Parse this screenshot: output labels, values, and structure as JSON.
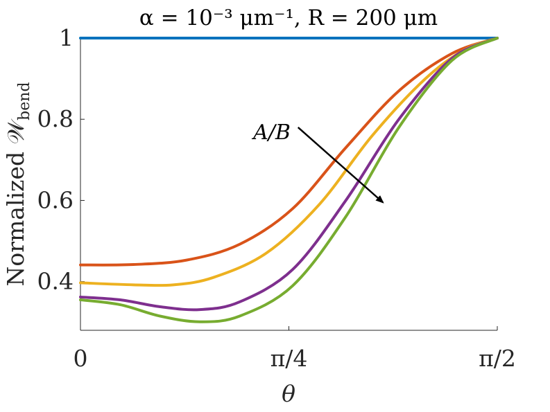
{
  "chart_data": {
    "type": "line",
    "title": "α = 10⁻³ μm⁻¹,   R = 200 μm",
    "xlabel": "θ",
    "ylabel": "Normalized 𝒲bend",
    "ylabel_main": "Normalized 𝒲",
    "ylabel_sub": "bend",
    "xlim": [
      0,
      1.5708
    ],
    "ylim": [
      0.28,
      1.0
    ],
    "xticks": [
      {
        "value": 0,
        "label": "0"
      },
      {
        "value": 0.7854,
        "label": "π/4"
      },
      {
        "value": 1.5708,
        "label": "π/2"
      }
    ],
    "yticks": [
      {
        "value": 0.4,
        "label": "0.4"
      },
      {
        "value": 0.6,
        "label": "0.6"
      },
      {
        "value": 0.8,
        "label": "0.8"
      },
      {
        "value": 1.0,
        "label": "1"
      }
    ],
    "grid": false,
    "legend": "none",
    "series": [
      {
        "color": "#0072BD",
        "points": [
          [
            0,
            1.0
          ],
          [
            1.5708,
            1.0
          ]
        ]
      },
      {
        "color": "#D95319",
        "points": [
          [
            0,
            0.441
          ],
          [
            0.2,
            0.442
          ],
          [
            0.4,
            0.453
          ],
          [
            0.6,
            0.492
          ],
          [
            0.8,
            0.58
          ],
          [
            1.0,
            0.73
          ],
          [
            1.2,
            0.87
          ],
          [
            1.4,
            0.962
          ],
          [
            1.5708,
            1.0
          ]
        ]
      },
      {
        "color": "#EDB120",
        "points": [
          [
            0,
            0.397
          ],
          [
            0.2,
            0.392
          ],
          [
            0.35,
            0.392
          ],
          [
            0.5,
            0.41
          ],
          [
            0.7,
            0.47
          ],
          [
            0.9,
            0.59
          ],
          [
            1.1,
            0.76
          ],
          [
            1.3,
            0.9
          ],
          [
            1.45,
            0.972
          ],
          [
            1.5708,
            1.0
          ]
        ]
      },
      {
        "color": "#7E2F8E",
        "points": [
          [
            0,
            0.362
          ],
          [
            0.15,
            0.355
          ],
          [
            0.3,
            0.338
          ],
          [
            0.45,
            0.331
          ],
          [
            0.6,
            0.35
          ],
          [
            0.8,
            0.43
          ],
          [
            1.0,
            0.6
          ],
          [
            1.2,
            0.8
          ],
          [
            1.4,
            0.95
          ],
          [
            1.5708,
            1.0
          ]
        ]
      },
      {
        "color": "#77AC30",
        "points": [
          [
            0,
            0.355
          ],
          [
            0.15,
            0.343
          ],
          [
            0.3,
            0.315
          ],
          [
            0.45,
            0.301
          ],
          [
            0.6,
            0.315
          ],
          [
            0.8,
            0.39
          ],
          [
            1.0,
            0.56
          ],
          [
            1.2,
            0.78
          ],
          [
            1.4,
            0.945
          ],
          [
            1.5708,
            1.0
          ]
        ]
      }
    ],
    "annotation": {
      "text": "A/B",
      "arrow_from": [
        0.82,
        0.78
      ],
      "arrow_to": [
        1.14,
        0.595
      ]
    }
  }
}
